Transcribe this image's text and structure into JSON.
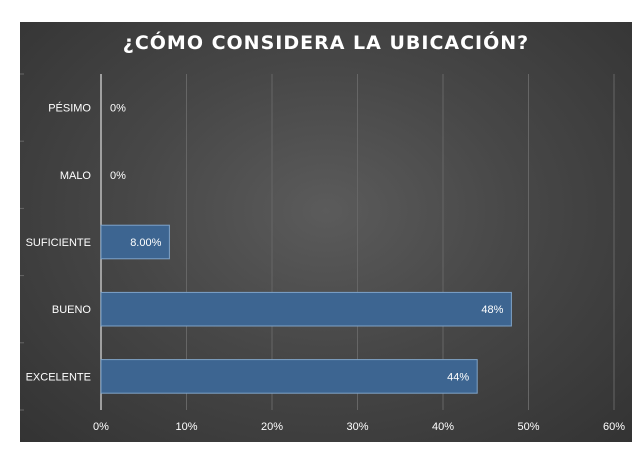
{
  "chart_data": {
    "type": "bar",
    "orientation": "horizontal",
    "title": "¿CÓMO CONSIDERA LA UBICACIÓN?",
    "categories": [
      "PÉSIMO",
      "MALO",
      "SUFICIENTE",
      "BUENO",
      "EXCELENTE"
    ],
    "values": [
      0,
      0,
      8,
      48,
      44
    ],
    "value_labels": [
      "0%",
      "0%",
      "8.00%",
      "48%",
      "44%"
    ],
    "x_ticks": [
      "0%",
      "10%",
      "20%",
      "30%",
      "40%",
      "50%",
      "60%"
    ],
    "xlim": [
      0,
      60
    ],
    "grid": true,
    "legend": "none",
    "colors": {
      "bar": "#3d6591",
      "bar_border": "#7fa3c8",
      "background": "#474747",
      "gridline": "#666666",
      "text": "#ffffff"
    }
  }
}
